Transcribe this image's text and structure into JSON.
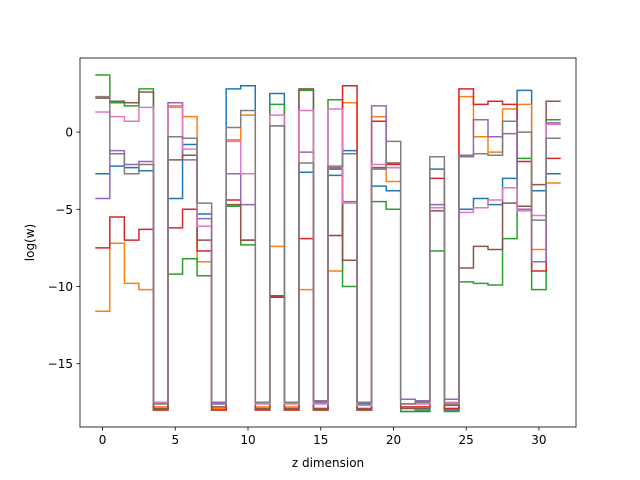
{
  "chart_data": {
    "type": "line",
    "drawstyle": "steps-mid",
    "xlabel": "z dimension",
    "ylabel": "log(w)",
    "xlim": [
      -1.55,
      32.55
    ],
    "ylim": [
      -19.1,
      4.8
    ],
    "xticks": [
      0,
      5,
      10,
      15,
      20,
      25,
      30
    ],
    "yticks": [
      -15,
      -10,
      -5,
      0
    ],
    "grid": false,
    "x": [
      0,
      1,
      2,
      3,
      4,
      5,
      6,
      7,
      8,
      9,
      10,
      11,
      12,
      13,
      14,
      15,
      16,
      17,
      18,
      19,
      20,
      21,
      22,
      23,
      24,
      25,
      26,
      27,
      28,
      29,
      30,
      31
    ],
    "series": [
      {
        "color": "#1f77b4",
        "values": [
          -2.7,
          -2.2,
          -2.3,
          -2.5,
          -17.6,
          -4.3,
          -0.8,
          -5.3,
          -17.6,
          2.8,
          3.0,
          -17.6,
          2.5,
          -17.6,
          -2.6,
          -17.6,
          -2.8,
          -1.2,
          -17.6,
          -3.5,
          -3.8,
          -18.1,
          -18.1,
          -2.4,
          -18.0,
          -5.0,
          -4.3,
          -4.7,
          -3.0,
          2.7,
          -3.8,
          -2.7
        ]
      },
      {
        "color": "#ff7f0e",
        "values": [
          -11.6,
          -7.2,
          -9.8,
          -10.2,
          -17.8,
          1.7,
          1.0,
          -8.4,
          -17.9,
          -0.5,
          1.1,
          -17.8,
          -7.4,
          -17.8,
          -10.2,
          -17.9,
          -9.0,
          1.9,
          -17.9,
          1.0,
          -3.2,
          -17.6,
          -17.6,
          -4.7,
          -17.9,
          2.3,
          -0.3,
          -1.3,
          1.5,
          1.8,
          -7.6,
          -3.3
        ]
      },
      {
        "color": "#2ca02c",
        "values": [
          3.7,
          1.9,
          1.7,
          2.8,
          -18.0,
          -9.2,
          -8.2,
          -9.3,
          -18.0,
          -4.8,
          -7.3,
          -18.0,
          1.8,
          -18.0,
          2.7,
          -18.0,
          2.1,
          -10.0,
          -18.0,
          -4.5,
          -5.0,
          -18.1,
          -18.0,
          -7.7,
          -18.1,
          -9.7,
          -9.8,
          -9.9,
          -6.9,
          -1.7,
          -10.2,
          0.8
        ]
      },
      {
        "color": "#d62728",
        "values": [
          -7.5,
          -5.5,
          -7.0,
          -6.3,
          -18.0,
          -6.2,
          -5.0,
          -7.7,
          -18.0,
          -4.4,
          -7.0,
          -18.0,
          -10.7,
          -18.0,
          -6.9,
          -18.0,
          -6.7,
          3.0,
          -18.0,
          0.7,
          -2.1,
          -17.8,
          -17.8,
          -3.0,
          -17.9,
          2.8,
          1.8,
          2.0,
          1.8,
          -1.9,
          -9.0,
          -1.7
        ]
      },
      {
        "color": "#9467bd",
        "values": [
          -4.3,
          -1.2,
          -2.1,
          -1.9,
          -17.5,
          1.9,
          -1.8,
          -5.6,
          -17.5,
          -2.7,
          -4.7,
          -17.5,
          0.4,
          -17.5,
          -1.3,
          -17.5,
          -2.3,
          -4.5,
          -17.5,
          1.7,
          -2.3,
          -17.3,
          -17.4,
          -4.7,
          -17.3,
          -1.5,
          0.8,
          -0.3,
          -0.1,
          -5.0,
          -8.4,
          0.6
        ]
      },
      {
        "color": "#8c564b",
        "values": [
          2.2,
          2.0,
          1.9,
          2.6,
          -17.9,
          -1.8,
          -1.5,
          -7.0,
          -17.8,
          -4.7,
          -7.0,
          -17.9,
          -10.6,
          -17.9,
          2.8,
          -17.9,
          -2.4,
          -8.3,
          -17.9,
          -2.3,
          -2.0,
          -17.9,
          -17.9,
          -5.1,
          -17.7,
          -8.8,
          -7.4,
          -7.6,
          -4.6,
          -4.8,
          -3.4,
          2.0
        ]
      },
      {
        "color": "#e377c2",
        "values": [
          1.3,
          1.0,
          0.7,
          1.6,
          -17.5,
          1.6,
          -1.1,
          -6.1,
          -17.6,
          -0.6,
          -2.7,
          -17.6,
          1.1,
          -17.6,
          1.4,
          -17.6,
          1.5,
          -4.6,
          -17.7,
          -2.1,
          -2.3,
          -17.6,
          -17.6,
          -4.9,
          -17.5,
          -5.2,
          -4.9,
          -4.4,
          -3.6,
          -5.1,
          -5.4,
          0.5
        ]
      },
      {
        "color": "#7f7f7f",
        "values": [
          2.3,
          -1.4,
          -2.7,
          -2.1,
          -17.6,
          -0.3,
          -0.4,
          -4.6,
          -17.6,
          0.3,
          1.4,
          -17.5,
          0.4,
          -17.5,
          -2.0,
          -17.4,
          -2.2,
          -1.4,
          -17.5,
          -2.4,
          -0.6,
          -17.6,
          -17.5,
          -1.6,
          -17.6,
          -1.6,
          -1.4,
          -1.5,
          0.7,
          0.0,
          -5.7,
          -0.4
        ]
      }
    ]
  }
}
